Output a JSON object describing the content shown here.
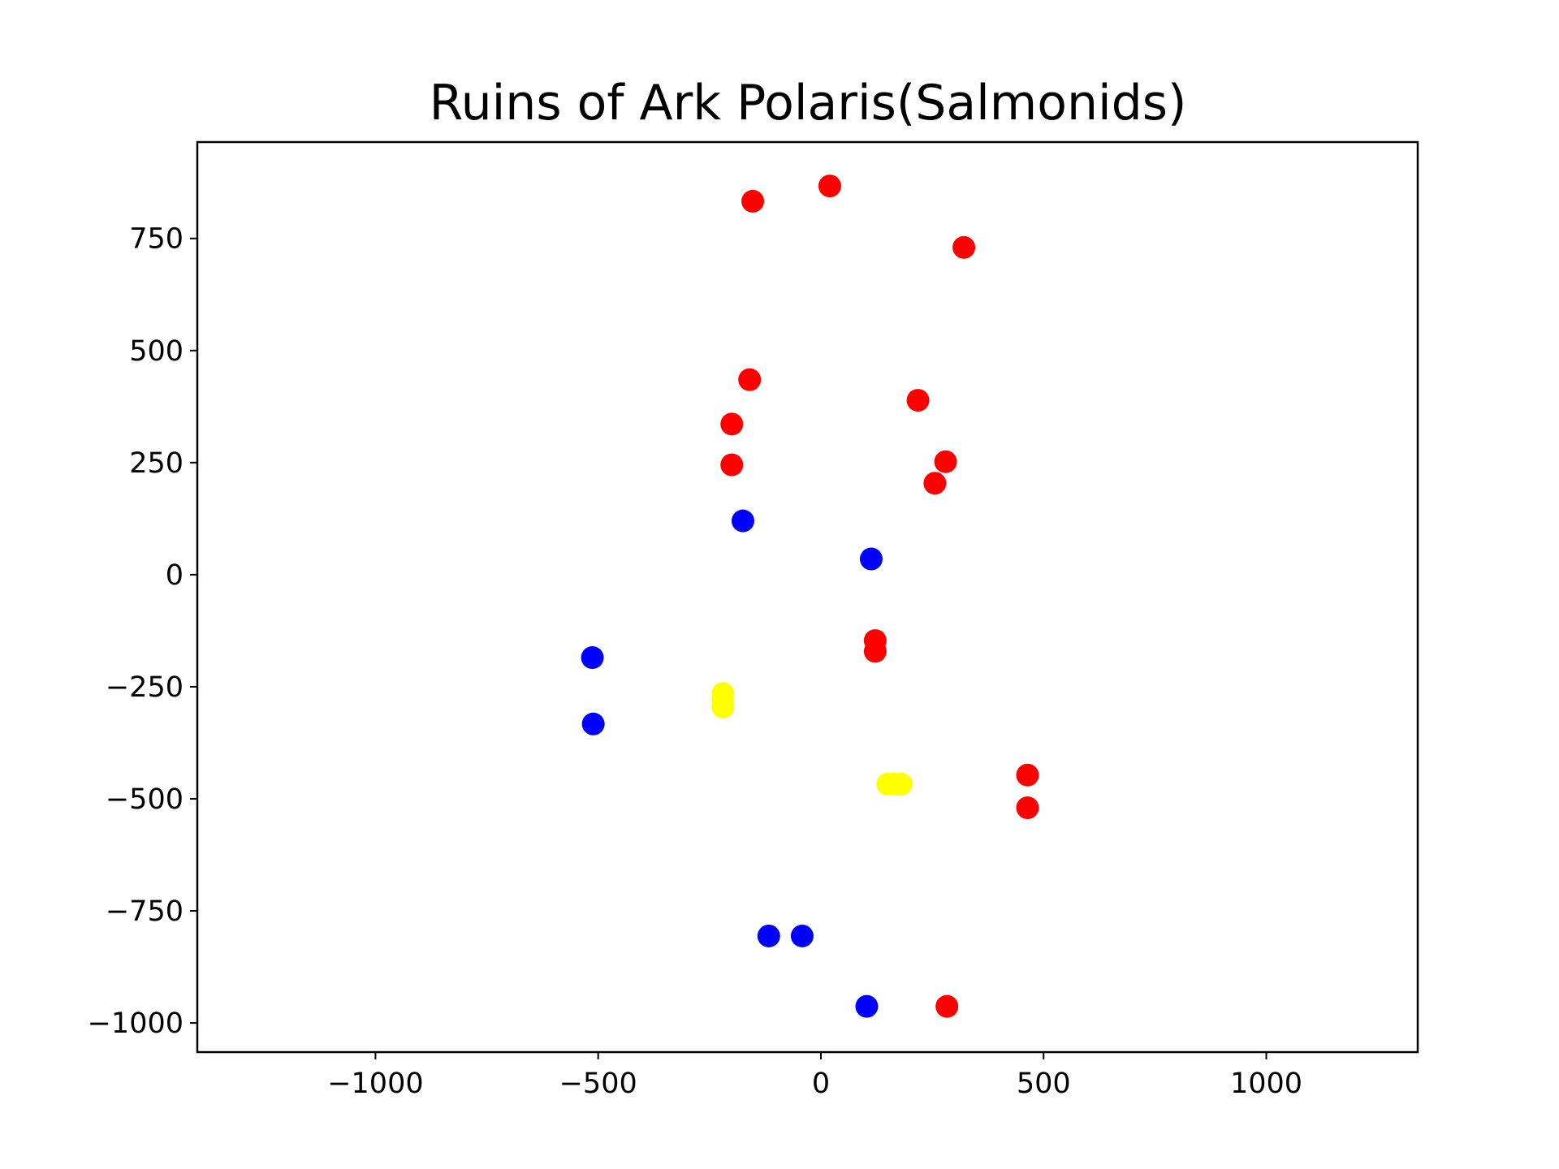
{
  "chart_data": {
    "type": "scatter",
    "title": "Ruins of Ark Polaris(Salmonids)",
    "xlabel": "",
    "ylabel": "",
    "xlim": [
      -1400,
      1340
    ],
    "ylim": [
      -1065,
      965
    ],
    "grid": false,
    "legend": "none",
    "x_ticks": [
      {
        "value": -1000,
        "label": "−1000"
      },
      {
        "value": -500,
        "label": "−500"
      },
      {
        "value": 0,
        "label": "0"
      },
      {
        "value": 500,
        "label": "500"
      },
      {
        "value": 1000,
        "label": "1000"
      }
    ],
    "y_ticks": [
      {
        "value": 750,
        "label": "750"
      },
      {
        "value": 500,
        "label": "500"
      },
      {
        "value": 250,
        "label": "250"
      },
      {
        "value": 0,
        "label": "0"
      },
      {
        "value": -250,
        "label": "−250"
      },
      {
        "value": -500,
        "label": "−500"
      },
      {
        "value": -750,
        "label": "−750"
      },
      {
        "value": -1000,
        "label": "−1000"
      }
    ],
    "series": [
      {
        "color": "#ff0000",
        "points": [
          [
            20,
            867
          ],
          [
            -153,
            833
          ],
          [
            321,
            730
          ],
          [
            -160,
            435
          ],
          [
            218,
            389
          ],
          [
            -200,
            336
          ],
          [
            -200,
            245
          ],
          [
            280,
            252
          ],
          [
            256,
            204
          ],
          [
            122,
            -147
          ],
          [
            122,
            -171
          ],
          [
            464,
            -447
          ],
          [
            464,
            -520
          ],
          [
            283,
            -963
          ]
        ]
      },
      {
        "color": "#0000ff",
        "points": [
          [
            -175,
            120
          ],
          [
            113,
            35
          ],
          [
            -513,
            -185
          ],
          [
            -511,
            -333
          ],
          [
            -117,
            -806
          ],
          [
            -42,
            -806
          ],
          [
            103,
            -963
          ]
        ]
      },
      {
        "color": "#ffff00",
        "points": [
          [
            -220,
            -265
          ],
          [
            -220,
            -280
          ],
          [
            -220,
            -295
          ],
          [
            150,
            -467
          ],
          [
            165,
            -467
          ],
          [
            180,
            -467
          ]
        ]
      }
    ]
  }
}
